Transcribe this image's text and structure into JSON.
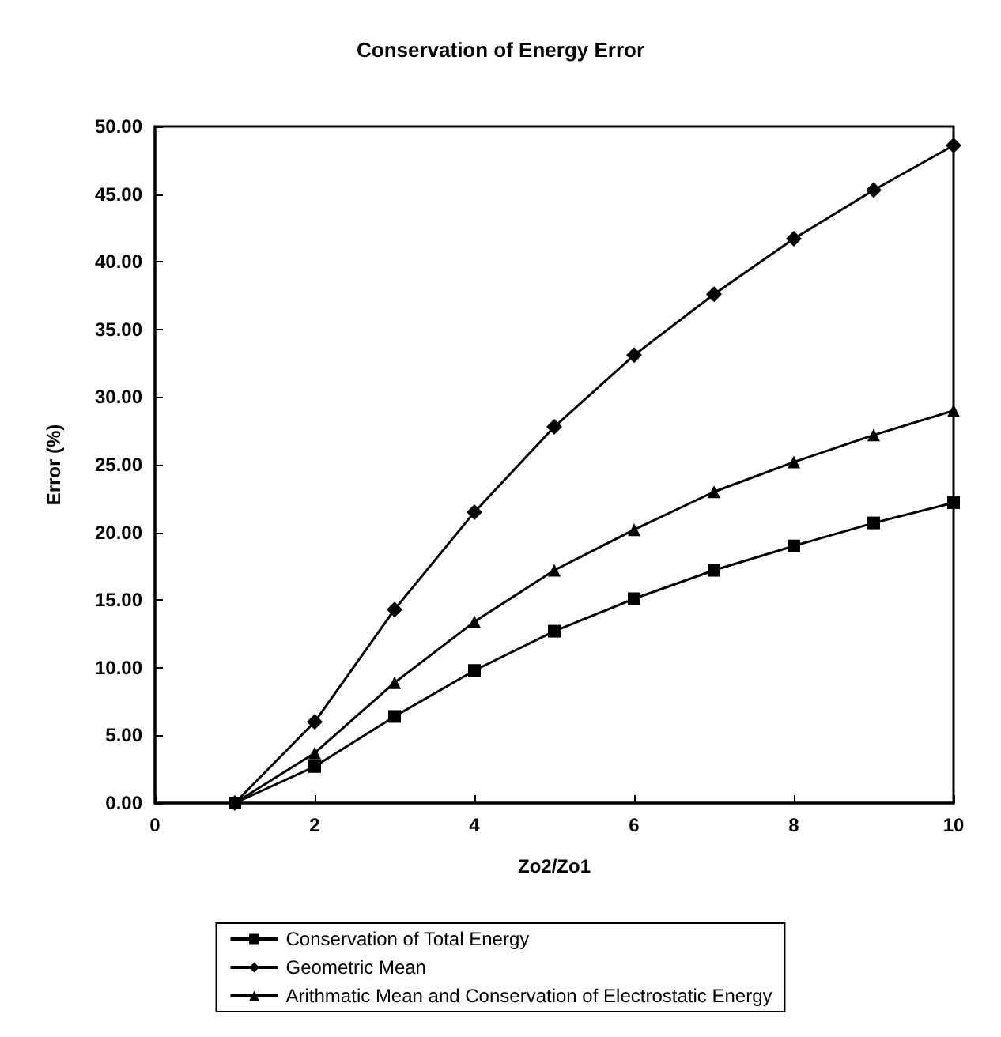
{
  "chart_data": {
    "type": "line",
    "title": "Conservation of Energy Error",
    "xlabel": "Zo2/Zo1",
    "ylabel": "Error (%)",
    "x": [
      1,
      2,
      3,
      4,
      5,
      6,
      7,
      8,
      9,
      10
    ],
    "series": [
      {
        "name": "Conservation of Total Energy",
        "color": "#000000",
        "marker": "square",
        "values": [
          0,
          2.7,
          6.4,
          9.8,
          12.7,
          15.1,
          17.2,
          19.0,
          20.7,
          22.2
        ]
      },
      {
        "name": "Geometric Mean",
        "color": "#000000",
        "marker": "diamond",
        "values": [
          0,
          6.0,
          14.3,
          21.5,
          27.8,
          33.1,
          37.6,
          41.7,
          45.3,
          48.6
        ]
      },
      {
        "name": "Arithmatic Mean and Conservation of Electrostatic Energy",
        "color": "#000000",
        "marker": "triangle",
        "values": [
          0,
          3.7,
          8.9,
          13.4,
          17.2,
          20.2,
          23.0,
          25.2,
          27.2,
          29.0
        ]
      }
    ],
    "xlim": [
      0,
      10
    ],
    "xticks": [
      0,
      2,
      4,
      6,
      8,
      10
    ],
    "ylim": [
      0,
      50
    ],
    "yticks": [
      {
        "value": 0,
        "label": "0.00"
      },
      {
        "value": 5,
        "label": "5.00"
      },
      {
        "value": 10,
        "label": "10.00"
      },
      {
        "value": 15,
        "label": "15.00"
      },
      {
        "value": 20,
        "label": "20.00"
      },
      {
        "value": 25,
        "label": "25.00"
      },
      {
        "value": 30,
        "label": "30.00"
      },
      {
        "value": 35,
        "label": "35.00"
      },
      {
        "value": 40,
        "label": "40.00"
      },
      {
        "value": 45,
        "label": "45.00"
      },
      {
        "value": 50,
        "label": "50.00"
      }
    ],
    "grid": false,
    "legend": "bottom",
    "line_style": "solid"
  }
}
